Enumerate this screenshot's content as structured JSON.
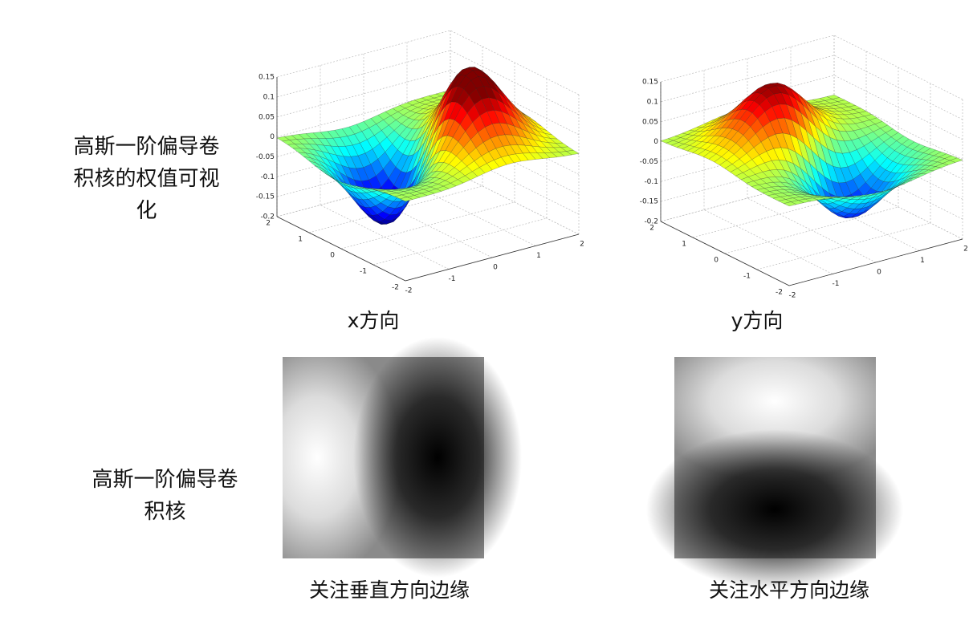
{
  "rows": [
    {
      "label": "高斯一阶偏导卷积核的权值可视化"
    },
    {
      "label": "高斯一阶偏导卷积核"
    }
  ],
  "plots": [
    {
      "caption": "x方向",
      "z_ticks": [
        0.15,
        0.1,
        0.05,
        0,
        -0.05,
        -0.1,
        -0.15,
        -0.2
      ],
      "u_ticks": [
        2,
        1,
        0,
        -1,
        -2
      ],
      "v_ticks": [
        -2,
        -1,
        0,
        1,
        2
      ]
    },
    {
      "caption": "y方向",
      "z_ticks": [
        0.15,
        0.1,
        0.05,
        0,
        -0.05,
        -0.1,
        -0.15,
        -0.2
      ],
      "u_ticks": [
        2,
        1,
        0,
        -1,
        -2
      ],
      "v_ticks": [
        -2,
        -1,
        0,
        1,
        2
      ]
    }
  ],
  "images": [
    {
      "caption": "关注垂直方向边缘"
    },
    {
      "caption": "关注水平方向边缘"
    }
  ]
}
